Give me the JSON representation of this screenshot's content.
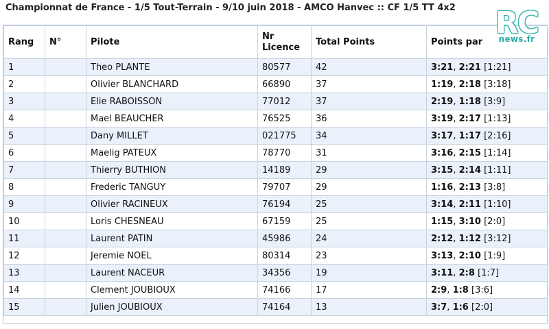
{
  "title": "Championnat de France - 1/5 Tout-Terrain - 9/10 juin 2018 - AMCO Hanvec :: CF 1/5 TT 4x2",
  "logo": {
    "rc": "RC",
    "news": "news.fr"
  },
  "columns": {
    "rang": "Rang",
    "num": "N°",
    "pilote": "Pilote",
    "licence": "Nr Licence",
    "total": "Total Points",
    "points_par": "Points par"
  },
  "rows": [
    {
      "rang": "1",
      "num": "",
      "pilote": "Theo PLANTE",
      "licence": "80577",
      "total": "42",
      "p1": "3:21",
      "p2": "2:21",
      "p3": "1:21"
    },
    {
      "rang": "2",
      "num": "",
      "pilote": "Olivier BLANCHARD",
      "licence": "66890",
      "total": "37",
      "p1": "1:19",
      "p2": "2:18",
      "p3": "3:18"
    },
    {
      "rang": "3",
      "num": "",
      "pilote": "Elie RABOISSON",
      "licence": "77012",
      "total": "37",
      "p1": "2:19",
      "p2": "1:18",
      "p3": "3:9"
    },
    {
      "rang": "4",
      "num": "",
      "pilote": "Mael BEAUCHER",
      "licence": "76525",
      "total": "36",
      "p1": "3:19",
      "p2": "2:17",
      "p3": "1:13"
    },
    {
      "rang": "5",
      "num": "",
      "pilote": "Dany MILLET",
      "licence": "021775",
      "total": "34",
      "p1": "3:17",
      "p2": "1:17",
      "p3": "2:16"
    },
    {
      "rang": "6",
      "num": "",
      "pilote": "Maelig PATEUX",
      "licence": "78770",
      "total": "31",
      "p1": "3:16",
      "p2": "2:15",
      "p3": "1:14"
    },
    {
      "rang": "7",
      "num": "",
      "pilote": "Thierry BUTHION",
      "licence": "14189",
      "total": "29",
      "p1": "3:15",
      "p2": "2:14",
      "p3": "1:11"
    },
    {
      "rang": "8",
      "num": "",
      "pilote": "Frederic TANGUY",
      "licence": "79707",
      "total": "29",
      "p1": "1:16",
      "p2": "2:13",
      "p3": "3:8"
    },
    {
      "rang": "9",
      "num": "",
      "pilote": "Olivier RACINEUX",
      "licence": "76194",
      "total": "25",
      "p1": "3:14",
      "p2": "2:11",
      "p3": "1:10"
    },
    {
      "rang": "10",
      "num": "",
      "pilote": "Loris CHESNEAU",
      "licence": "67159",
      "total": "25",
      "p1": "1:15",
      "p2": "3:10",
      "p3": "2:0"
    },
    {
      "rang": "11",
      "num": "",
      "pilote": "Laurent PATIN",
      "licence": "45986",
      "total": "24",
      "p1": "2:12",
      "p2": "1:12",
      "p3": "3:12"
    },
    {
      "rang": "12",
      "num": "",
      "pilote": "Jeremie NOEL",
      "licence": "80314",
      "total": "23",
      "p1": "3:13",
      "p2": "2:10",
      "p3": "1:9"
    },
    {
      "rang": "13",
      "num": "",
      "pilote": "Laurent NACEUR",
      "licence": "34356",
      "total": "19",
      "p1": "3:11",
      "p2": "2:8",
      "p3": "1:7"
    },
    {
      "rang": "14",
      "num": "",
      "pilote": "Clement JOUBIOUX",
      "licence": "74166",
      "total": "17",
      "p1": "2:9",
      "p2": "1:8",
      "p3": "3:6"
    },
    {
      "rang": "15",
      "num": "",
      "pilote": "Julien JOUBIOUX",
      "licence": "74164",
      "total": "13",
      "p1": "3:7",
      "p2": "1:6",
      "p3": "2:0"
    }
  ],
  "colors": {
    "row_alt": "#eaf1fb",
    "border": "#c8d3df",
    "logo_accent": "#2ab0a8"
  }
}
